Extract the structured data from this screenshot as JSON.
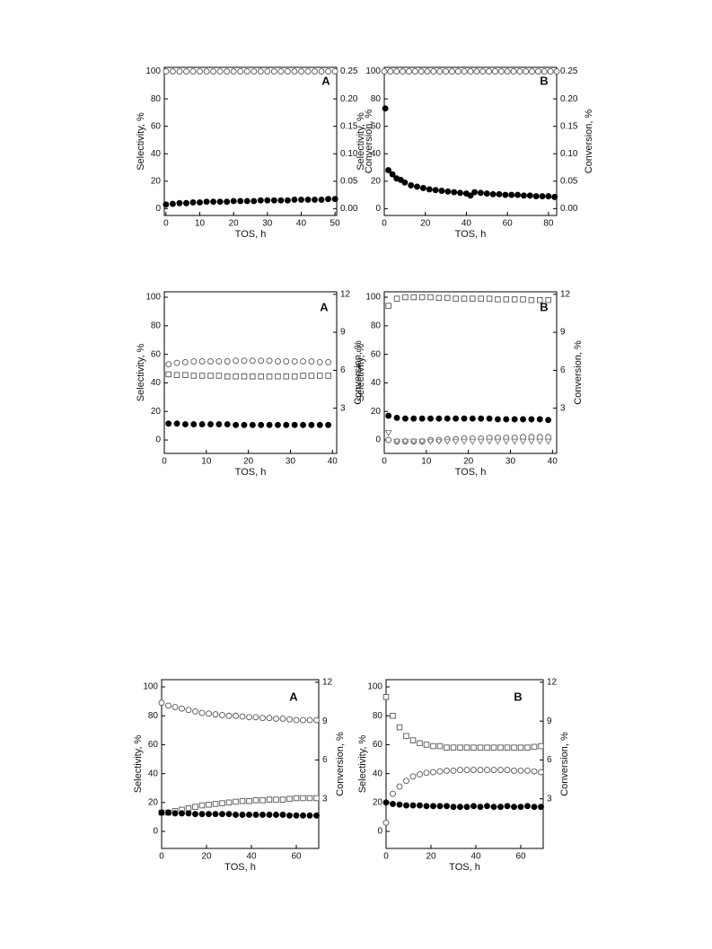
{
  "chart_data": [
    {
      "type": "scatter",
      "title": "A",
      "xlabel": "TOS, h",
      "ylabel": "Selectivity, %",
      "y2label": "Conversion, %",
      "xlim": [
        -0.5,
        50.5
      ],
      "xticks": [
        0,
        10,
        20,
        30,
        40,
        50
      ],
      "ylim": [
        -5,
        103
      ],
      "yticks": [
        0,
        20,
        40,
        60,
        80,
        100
      ],
      "y2lim": [
        -0.0125,
        0.2575
      ],
      "y2ticks": [
        {
          "value": 0,
          "label": "0.00"
        },
        {
          "value": 0.05,
          "label": "0.05"
        },
        {
          "value": 0.1,
          "label": "0.10"
        },
        {
          "value": 0.15,
          "label": "0.15"
        },
        {
          "value": 0.2,
          "label": "0.20"
        },
        {
          "value": 0.25,
          "label": "0.25"
        }
      ],
      "series": [
        {
          "marker": "circle-open",
          "color": "#555555",
          "x": [
            0,
            2,
            4,
            6,
            8,
            10,
            12,
            14,
            16,
            18,
            20,
            22,
            24,
            26,
            28,
            30,
            32,
            34,
            36,
            38,
            40,
            42,
            44,
            46,
            48,
            50
          ],
          "values": [
            100,
            100,
            100,
            100,
            100,
            100,
            100,
            100,
            100,
            100,
            100,
            100,
            100,
            100,
            100,
            100,
            100,
            100,
            100,
            100,
            100,
            100,
            100,
            100,
            100,
            100
          ]
        },
        {
          "marker": "circle-filled",
          "color": "#000000",
          "x": [
            0,
            2,
            4,
            6,
            8,
            10,
            12,
            14,
            16,
            18,
            20,
            22,
            24,
            26,
            28,
            30,
            32,
            34,
            36,
            38,
            40,
            42,
            44,
            46,
            48,
            50
          ],
          "values": [
            3,
            3.5,
            4,
            4,
            4.5,
            4.5,
            5,
            5,
            5,
            5,
            5.5,
            5.5,
            5.5,
            5.5,
            6,
            6,
            6,
            6,
            6,
            6.5,
            6.5,
            6.5,
            6.5,
            6.5,
            7,
            7
          ]
        }
      ]
    },
    {
      "type": "scatter",
      "title": "B",
      "xlabel": "TOS, h",
      "ylabel": "Selectivity, %",
      "y2label": "Conversion, %",
      "xlim": [
        0,
        84
      ],
      "xticks": [
        0,
        20,
        40,
        60,
        80
      ],
      "ylim": [
        -5,
        103
      ],
      "yticks": [
        0,
        20,
        40,
        60,
        80,
        100
      ],
      "y2lim": [
        -0.0125,
        0.2575
      ],
      "y2ticks": [
        {
          "value": 0,
          "label": "0.00"
        },
        {
          "value": 0.05,
          "label": "0.05"
        },
        {
          "value": 0.1,
          "label": "0.10"
        },
        {
          "value": 0.15,
          "label": "0.15"
        },
        {
          "value": 0.2,
          "label": "0.20"
        },
        {
          "value": 0.25,
          "label": "0.25"
        }
      ],
      "series": [
        {
          "marker": "circle-open",
          "color": "#555555",
          "x": [
            0,
            3,
            6,
            9,
            12,
            15,
            18,
            21,
            24,
            27,
            30,
            33,
            36,
            39,
            42,
            45,
            48,
            51,
            54,
            57,
            60,
            63,
            66,
            69,
            72,
            75,
            78,
            81,
            84
          ],
          "values": [
            100,
            100,
            100,
            100,
            100,
            100,
            100,
            100,
            100,
            100,
            100,
            100,
            100,
            100,
            100,
            100,
            100,
            100,
            100,
            100,
            100,
            100,
            100,
            100,
            100,
            100,
            100,
            100,
            100
          ]
        },
        {
          "marker": "circle-filled",
          "color": "#000000",
          "x": [
            0.5,
            2,
            4,
            6,
            8,
            10,
            13,
            16,
            19,
            22,
            25,
            28,
            31,
            34,
            37,
            40,
            42,
            44,
            47,
            50,
            53,
            56,
            59,
            62,
            65,
            68,
            71,
            74,
            77,
            80,
            83
          ],
          "values": [
            73,
            28,
            25,
            22,
            21,
            19,
            17,
            16,
            15,
            14,
            13.5,
            13,
            12.5,
            12,
            11.5,
            11,
            9.5,
            12,
            11.5,
            11,
            10.5,
            10.5,
            10,
            10,
            10,
            9.5,
            9.5,
            9,
            9,
            9,
            8.5
          ]
        }
      ]
    },
    {
      "type": "scatter",
      "title": "A",
      "xlabel": "TOS, h",
      "ylabel": "Selectivity, %",
      "y2label": "Conversion, %",
      "xlim": [
        0,
        41
      ],
      "xticks": [
        0,
        10,
        20,
        30,
        40
      ],
      "ylim": [
        -9.4,
        103.8
      ],
      "yticks": [
        0,
        20,
        40,
        60,
        80,
        100
      ],
      "y2lim": [
        -0.57,
        12.2
      ],
      "y2ticks": [
        3,
        6,
        9,
        12
      ],
      "series": [
        {
          "marker": "circle-open",
          "color": "#555555",
          "x": [
            1,
            3,
            5,
            7,
            9,
            11,
            13,
            15,
            17,
            19,
            21,
            23,
            25,
            27,
            29,
            31,
            33,
            35,
            37,
            39
          ],
          "values": [
            53,
            54,
            54.5,
            55,
            55,
            55,
            55,
            55,
            55.5,
            55.5,
            55.5,
            55.5,
            55.5,
            55,
            55,
            55,
            55,
            55,
            54.5,
            54.5
          ]
        },
        {
          "marker": "square-open",
          "color": "#555555",
          "x": [
            1,
            3,
            5,
            7,
            9,
            11,
            13,
            15,
            17,
            19,
            21,
            23,
            25,
            27,
            29,
            31,
            33,
            35,
            37,
            39
          ],
          "values": [
            46,
            45.5,
            45.5,
            45,
            45,
            45,
            45,
            44.5,
            44.5,
            44.5,
            44.5,
            44.5,
            44.5,
            44.5,
            44.5,
            44.5,
            45,
            45,
            45,
            45
          ]
        },
        {
          "marker": "circle-filled",
          "color": "#000000",
          "x": [
            1,
            3,
            5,
            7,
            9,
            11,
            13,
            15,
            17,
            19,
            21,
            23,
            25,
            27,
            29,
            31,
            33,
            35,
            37,
            39
          ],
          "values": [
            11.5,
            11.5,
            11,
            11,
            11,
            11,
            11,
            11,
            10.5,
            10.5,
            10.5,
            10.5,
            10.5,
            10.5,
            10.5,
            10.5,
            10.5,
            10.5,
            10.5,
            10.5
          ]
        }
      ]
    },
    {
      "type": "scatter",
      "title": "B",
      "xlabel": "TOS, h",
      "ylabel": "Selectivity, %",
      "y2label": "Conversion, %",
      "xlim": [
        0,
        41
      ],
      "xticks": [
        0,
        10,
        20,
        30,
        40
      ],
      "ylim": [
        -9.4,
        103.8
      ],
      "yticks": [
        0,
        20,
        40,
        60,
        80,
        100
      ],
      "y2lim": [
        -0.57,
        12.2
      ],
      "y2ticks": [
        3,
        6,
        9,
        12
      ],
      "series": [
        {
          "marker": "square-open",
          "color": "#555555",
          "x": [
            1,
            3,
            5,
            7,
            9,
            11,
            13,
            15,
            17,
            19,
            21,
            23,
            25,
            27,
            29,
            31,
            33,
            35,
            37,
            39
          ],
          "values": [
            94,
            99,
            100,
            100,
            100,
            100,
            99.5,
            99.5,
            99,
            99,
            99,
            99,
            99,
            98.5,
            98.5,
            98.5,
            98.5,
            98,
            98,
            98
          ]
        },
        {
          "marker": "circle-filled",
          "color": "#000000",
          "x": [
            1,
            3,
            5,
            7,
            9,
            11,
            13,
            15,
            17,
            19,
            21,
            23,
            25,
            27,
            29,
            31,
            33,
            35,
            37,
            39
          ],
          "values": [
            17,
            15.5,
            15,
            15,
            15,
            15,
            15,
            15,
            15,
            15,
            15,
            15,
            15,
            14.5,
            14.5,
            14.5,
            14.5,
            14.5,
            14.5,
            14
          ]
        },
        {
          "marker": "circle-open",
          "color": "#555555",
          "x": [
            1,
            3,
            5,
            7,
            9,
            11,
            13,
            15,
            17,
            19,
            21,
            23,
            25,
            27,
            29,
            31,
            33,
            35,
            37,
            39
          ],
          "values": [
            0,
            -1,
            -1,
            -1,
            -1,
            0,
            0,
            0.5,
            0.5,
            1,
            1,
            1,
            1.5,
            1.5,
            1.5,
            1.5,
            2,
            2,
            2,
            2
          ]
        },
        {
          "marker": "triangle-open",
          "color": "#777777",
          "x": [
            1,
            3,
            5,
            7,
            9,
            11,
            13,
            15,
            17,
            19,
            21,
            23,
            25,
            27,
            29,
            31,
            33,
            35,
            37,
            39
          ],
          "values": [
            5,
            -1,
            -1,
            -1,
            -1,
            -1,
            -1,
            -1,
            -1,
            -1,
            -1,
            -1,
            -1,
            -1,
            -1,
            -1,
            -1,
            -1,
            -1,
            -1
          ]
        }
      ]
    },
    {
      "type": "scatter",
      "title": "A",
      "xlabel": "TOS, h",
      "ylabel": "Selectivity, %",
      "y2label": "Conversion, %",
      "xlim": [
        0,
        70
      ],
      "xticks": [
        0,
        20,
        40,
        60
      ],
      "ylim": [
        -11.8,
        105
      ],
      "yticks": [
        0,
        20,
        40,
        60,
        80,
        100
      ],
      "y2lim": [
        -0.83,
        12.2
      ],
      "y2ticks": [
        3,
        6,
        9,
        12
      ],
      "series": [
        {
          "marker": "circle-open",
          "color": "#555555",
          "x": [
            0,
            3,
            6,
            9,
            12,
            15,
            18,
            21,
            24,
            27,
            30,
            33,
            36,
            39,
            42,
            45,
            48,
            51,
            54,
            57,
            60,
            63,
            66,
            69
          ],
          "values": [
            89,
            87,
            86,
            85,
            84,
            83,
            82,
            81.5,
            81,
            80.5,
            80,
            80,
            79.5,
            79,
            79,
            78.5,
            78.5,
            78,
            78,
            77.5,
            77,
            77,
            77,
            77
          ]
        },
        {
          "marker": "square-open",
          "color": "#555555",
          "x": [
            0,
            3,
            6,
            9,
            12,
            15,
            18,
            21,
            24,
            27,
            30,
            33,
            36,
            39,
            42,
            45,
            48,
            51,
            54,
            57,
            60,
            63,
            66,
            69
          ],
          "values": [
            13,
            13,
            14,
            15,
            16,
            17,
            18,
            18.5,
            19,
            19.5,
            20,
            20.5,
            21,
            21,
            21.5,
            21.5,
            22,
            22,
            22,
            22.5,
            23,
            23,
            23,
            23
          ]
        },
        {
          "marker": "circle-filled",
          "color": "#000000",
          "x": [
            0,
            3,
            6,
            9,
            12,
            15,
            18,
            21,
            24,
            27,
            30,
            33,
            36,
            39,
            42,
            45,
            48,
            51,
            54,
            57,
            60,
            63,
            66,
            69
          ],
          "values": [
            13,
            13,
            12.5,
            12.5,
            12.5,
            12,
            12,
            12,
            12,
            12,
            12,
            11.5,
            11.5,
            11.5,
            11.5,
            11.5,
            11.5,
            11.5,
            11.5,
            11,
            11,
            11,
            11,
            11
          ]
        }
      ]
    },
    {
      "type": "scatter",
      "title": "B",
      "xlabel": "TOS, h",
      "ylabel": "Selectivity, %",
      "y2label": "Conversion, %",
      "xlim": [
        0,
        70
      ],
      "xticks": [
        0,
        20,
        40,
        60
      ],
      "ylim": [
        -11.8,
        105
      ],
      "yticks": [
        0,
        20,
        40,
        60,
        80,
        100
      ],
      "y2lim": [
        -0.83,
        12.2
      ],
      "y2ticks": [
        3,
        6,
        9,
        12
      ],
      "series": [
        {
          "marker": "square-open",
          "color": "#555555",
          "x": [
            0,
            3,
            6,
            9,
            12,
            15,
            18,
            21,
            24,
            27,
            30,
            33,
            36,
            39,
            42,
            45,
            48,
            51,
            54,
            57,
            60,
            63,
            66,
            69
          ],
          "values": [
            93,
            80,
            72,
            66,
            63,
            61,
            60,
            59,
            59,
            58,
            58,
            58,
            58,
            58,
            58,
            58,
            58,
            58,
            58,
            58,
            58,
            58,
            58.5,
            59
          ]
        },
        {
          "marker": "circle-open",
          "color": "#555555",
          "x": [
            0,
            3,
            6,
            9,
            12,
            15,
            18,
            21,
            24,
            27,
            30,
            33,
            36,
            39,
            42,
            45,
            48,
            51,
            54,
            57,
            60,
            63,
            66,
            69
          ],
          "values": [
            6,
            26,
            31,
            35,
            38,
            39.5,
            40.5,
            41,
            41.5,
            42,
            42,
            42.5,
            42.5,
            42.5,
            42.5,
            42.5,
            42.5,
            42.5,
            42.5,
            42,
            42,
            42,
            41.5,
            41
          ]
        },
        {
          "marker": "circle-filled",
          "color": "#000000",
          "x": [
            0,
            3,
            6,
            9,
            12,
            15,
            18,
            21,
            24,
            27,
            30,
            33,
            36,
            39,
            42,
            45,
            48,
            51,
            54,
            57,
            60,
            63,
            66,
            69
          ],
          "values": [
            20,
            19,
            18.5,
            18,
            18,
            18,
            17.5,
            17.5,
            17.5,
            17.5,
            17,
            17,
            17,
            17.5,
            17,
            17.5,
            17,
            17,
            17.5,
            17,
            17,
            17.5,
            17,
            17
          ]
        }
      ]
    }
  ]
}
